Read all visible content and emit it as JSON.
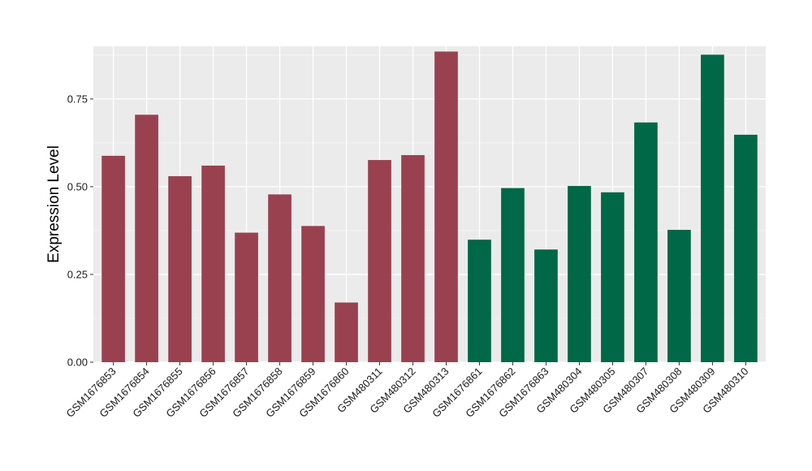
{
  "chart_data": {
    "type": "bar",
    "title": "",
    "xlabel": "",
    "ylabel": "Expression Level",
    "ylim": [
      0,
      0.9
    ],
    "yticks": [
      0.0,
      0.25,
      0.5,
      0.75
    ],
    "ytick_labels": [
      "0.00",
      "0.25",
      "0.50",
      "0.75"
    ],
    "grid": true,
    "legend": "none",
    "categories": [
      "GSM1676853",
      "GSM1676854",
      "GSM1676855",
      "GSM1676856",
      "GSM1676857",
      "GSM1676858",
      "GSM1676859",
      "GSM1676860",
      "GSM480311",
      "GSM480312",
      "GSM480313",
      "GSM1676861",
      "GSM1676862",
      "GSM1676863",
      "GSM480304",
      "GSM480305",
      "GSM480307",
      "GSM480308",
      "GSM480309",
      "GSM480310"
    ],
    "values": [
      0.588,
      0.705,
      0.53,
      0.56,
      0.369,
      0.478,
      0.388,
      0.17,
      0.576,
      0.59,
      0.885,
      0.349,
      0.496,
      0.321,
      0.502,
      0.484,
      0.683,
      0.377,
      0.876,
      0.648
    ],
    "groups": [
      0,
      0,
      0,
      0,
      0,
      0,
      0,
      0,
      0,
      0,
      0,
      1,
      1,
      1,
      1,
      1,
      1,
      1,
      1,
      1
    ],
    "group_colors": [
      "#9a4150",
      "#006846"
    ],
    "colors": {
      "panel_background": "#ebebeb",
      "grid_major": "#ffffff",
      "grid_minor": "#f5f5f5"
    }
  }
}
